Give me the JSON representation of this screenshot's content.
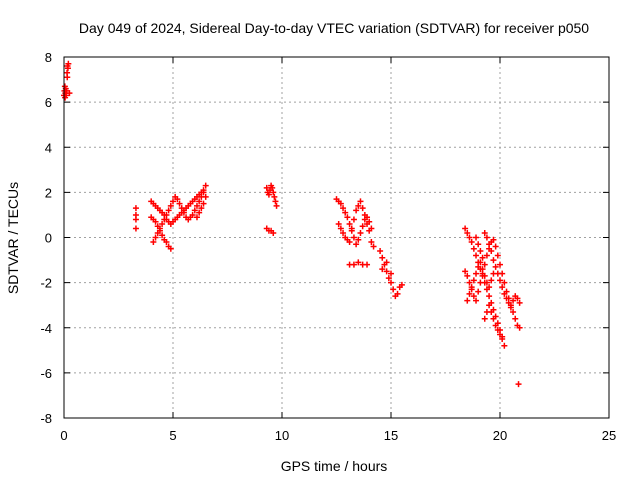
{
  "chart_data": {
    "type": "scatter",
    "title": "Day 049 of 2024, Sidereal Day-to-day VTEC variation (SDTVAR) for receiver p050",
    "xlabel": "GPS time / hours",
    "ylabel": "SDTVAR / TECUs",
    "xlim": [
      0,
      25
    ],
    "ylim": [
      -8,
      8
    ],
    "x_ticks": [
      0,
      5,
      10,
      15,
      20,
      25
    ],
    "y_ticks": [
      -8,
      -6,
      -4,
      -2,
      0,
      2,
      4,
      6,
      8
    ],
    "grid": true,
    "marker": "+",
    "series": [
      {
        "name": "SDTVAR",
        "color": "#ff0000",
        "points": [
          [
            0.0,
            6.3
          ],
          [
            0.02,
            6.5
          ],
          [
            0.04,
            6.7
          ],
          [
            0.06,
            6.4
          ],
          [
            0.08,
            6.6
          ],
          [
            0.1,
            6.3
          ],
          [
            0.12,
            6.5
          ],
          [
            0.14,
            7.3
          ],
          [
            0.16,
            7.6
          ],
          [
            0.18,
            7.5
          ],
          [
            0.2,
            7.7
          ],
          [
            0.15,
            7.1
          ],
          [
            0.05,
            6.2
          ],
          [
            0.25,
            6.4
          ],
          [
            3.3,
            1.3
          ],
          [
            3.3,
            1.0
          ],
          [
            3.3,
            0.8
          ],
          [
            3.3,
            0.4
          ],
          [
            4.0,
            1.6
          ],
          [
            4.1,
            1.5
          ],
          [
            4.2,
            1.4
          ],
          [
            4.3,
            1.3
          ],
          [
            4.4,
            1.2
          ],
          [
            4.5,
            1.1
          ],
          [
            4.6,
            1.0
          ],
          [
            4.7,
            0.8
          ],
          [
            4.8,
            0.7
          ],
          [
            4.9,
            0.6
          ],
          [
            5.0,
            0.7
          ],
          [
            5.1,
            0.8
          ],
          [
            5.2,
            0.9
          ],
          [
            5.3,
            1.0
          ],
          [
            5.4,
            1.1
          ],
          [
            5.5,
            1.2
          ],
          [
            5.6,
            1.3
          ],
          [
            5.7,
            1.4
          ],
          [
            5.8,
            1.5
          ],
          [
            5.9,
            1.6
          ],
          [
            6.0,
            1.7
          ],
          [
            6.1,
            1.8
          ],
          [
            6.2,
            1.9
          ],
          [
            6.3,
            2.0
          ],
          [
            6.4,
            2.1
          ],
          [
            6.5,
            2.3
          ],
          [
            4.0,
            0.9
          ],
          [
            4.1,
            0.8
          ],
          [
            4.2,
            0.7
          ],
          [
            4.3,
            0.5
          ],
          [
            4.4,
            0.3
          ],
          [
            4.5,
            0.1
          ],
          [
            4.6,
            -0.1
          ],
          [
            4.7,
            -0.2
          ],
          [
            4.8,
            -0.4
          ],
          [
            4.9,
            -0.5
          ],
          [
            4.1,
            -0.2
          ],
          [
            4.2,
            0.0
          ],
          [
            4.3,
            0.2
          ],
          [
            4.4,
            0.4
          ],
          [
            4.5,
            0.6
          ],
          [
            4.6,
            0.8
          ],
          [
            4.7,
            1.0
          ],
          [
            4.8,
            1.2
          ],
          [
            4.9,
            1.4
          ],
          [
            5.0,
            1.6
          ],
          [
            5.1,
            1.8
          ],
          [
            5.2,
            1.7
          ],
          [
            5.3,
            1.5
          ],
          [
            5.4,
            1.3
          ],
          [
            5.5,
            1.1
          ],
          [
            5.6,
            0.9
          ],
          [
            5.7,
            0.8
          ],
          [
            5.8,
            0.9
          ],
          [
            5.9,
            1.0
          ],
          [
            6.0,
            1.2
          ],
          [
            6.1,
            1.4
          ],
          [
            6.2,
            1.6
          ],
          [
            6.3,
            1.8
          ],
          [
            6.4,
            2.0
          ],
          [
            6.5,
            1.8
          ],
          [
            6.4,
            1.5
          ],
          [
            6.3,
            1.3
          ],
          [
            6.2,
            1.1
          ],
          [
            6.1,
            0.9
          ],
          [
            9.3,
            2.2
          ],
          [
            9.35,
            2.0
          ],
          [
            9.4,
            1.9
          ],
          [
            9.45,
            2.1
          ],
          [
            9.5,
            2.3
          ],
          [
            9.55,
            2.2
          ],
          [
            9.6,
            2.0
          ],
          [
            9.65,
            1.8
          ],
          [
            9.7,
            1.6
          ],
          [
            9.75,
            1.4
          ],
          [
            9.3,
            0.4
          ],
          [
            9.4,
            0.3
          ],
          [
            9.5,
            0.3
          ],
          [
            9.6,
            0.2
          ],
          [
            12.5,
            1.7
          ],
          [
            12.6,
            1.6
          ],
          [
            12.7,
            1.5
          ],
          [
            12.8,
            1.3
          ],
          [
            12.9,
            1.1
          ],
          [
            13.0,
            0.9
          ],
          [
            13.1,
            0.6
          ],
          [
            13.2,
            0.3
          ],
          [
            13.3,
            0.0
          ],
          [
            13.4,
            -0.3
          ],
          [
            13.5,
            -0.1
          ],
          [
            13.6,
            0.2
          ],
          [
            13.7,
            0.5
          ],
          [
            13.8,
            0.8
          ],
          [
            13.9,
            0.9
          ],
          [
            14.0,
            0.7
          ],
          [
            14.1,
            0.4
          ],
          [
            12.6,
            0.6
          ],
          [
            12.7,
            0.4
          ],
          [
            12.8,
            0.2
          ],
          [
            12.9,
            0.0
          ],
          [
            13.0,
            -0.1
          ],
          [
            13.1,
            -0.2
          ],
          [
            13.2,
            0.4
          ],
          [
            13.3,
            0.8
          ],
          [
            13.4,
            1.2
          ],
          [
            13.5,
            1.4
          ],
          [
            13.6,
            1.6
          ],
          [
            13.7,
            1.3
          ],
          [
            13.8,
            1.0
          ],
          [
            13.9,
            0.6
          ],
          [
            14.0,
            0.3
          ],
          [
            14.1,
            -0.2
          ],
          [
            14.2,
            -0.4
          ],
          [
            13.1,
            -1.2
          ],
          [
            13.3,
            -1.2
          ],
          [
            13.5,
            -1.1
          ],
          [
            13.7,
            -1.2
          ],
          [
            13.9,
            -1.2
          ],
          [
            14.5,
            -0.6
          ],
          [
            14.6,
            -0.9
          ],
          [
            14.7,
            -1.2
          ],
          [
            14.8,
            -1.5
          ],
          [
            14.9,
            -1.8
          ],
          [
            15.0,
            -2.0
          ],
          [
            15.1,
            -2.3
          ],
          [
            15.2,
            -2.6
          ],
          [
            15.3,
            -2.5
          ],
          [
            15.4,
            -2.2
          ],
          [
            15.5,
            -2.1
          ],
          [
            14.6,
            -1.4
          ],
          [
            14.8,
            -1.1
          ],
          [
            15.0,
            -1.6
          ],
          [
            18.4,
            0.4
          ],
          [
            18.5,
            0.2
          ],
          [
            18.6,
            0.0
          ],
          [
            18.7,
            -0.2
          ],
          [
            18.8,
            -0.5
          ],
          [
            18.9,
            -0.8
          ],
          [
            19.0,
            -1.1
          ],
          [
            19.1,
            -1.4
          ],
          [
            19.2,
            -1.7
          ],
          [
            19.3,
            -2.0
          ],
          [
            19.4,
            -2.3
          ],
          [
            19.5,
            -2.6
          ],
          [
            19.6,
            -2.9
          ],
          [
            19.7,
            -3.2
          ],
          [
            19.8,
            -3.5
          ],
          [
            19.9,
            -3.8
          ],
          [
            20.0,
            -4.1
          ],
          [
            20.1,
            -4.4
          ],
          [
            20.2,
            -4.8
          ],
          [
            18.4,
            -1.5
          ],
          [
            18.5,
            -1.7
          ],
          [
            18.6,
            -2.0
          ],
          [
            18.7,
            -2.3
          ],
          [
            18.8,
            -2.6
          ],
          [
            18.9,
            -2.8
          ],
          [
            19.0,
            -2.4
          ],
          [
            19.1,
            -2.0
          ],
          [
            19.2,
            -1.6
          ],
          [
            19.3,
            -1.2
          ],
          [
            19.4,
            -0.8
          ],
          [
            19.5,
            -0.5
          ],
          [
            19.6,
            -0.2
          ],
          [
            19.7,
            -0.1
          ],
          [
            19.8,
            -0.4
          ],
          [
            19.9,
            -0.8
          ],
          [
            20.0,
            -1.2
          ],
          [
            20.1,
            -1.6
          ],
          [
            20.2,
            -2.0
          ],
          [
            20.3,
            -2.4
          ],
          [
            20.4,
            -2.7
          ],
          [
            20.5,
            -3.0
          ],
          [
            20.6,
            -3.3
          ],
          [
            20.7,
            -3.6
          ],
          [
            20.8,
            -3.9
          ],
          [
            20.9,
            -4.0
          ],
          [
            18.5,
            -2.8
          ],
          [
            18.6,
            -2.5
          ],
          [
            18.7,
            -2.2
          ],
          [
            18.8,
            -1.9
          ],
          [
            18.9,
            -1.6
          ],
          [
            19.0,
            -1.3
          ],
          [
            19.1,
            -1.1
          ],
          [
            19.2,
            -1.4
          ],
          [
            19.3,
            -1.7
          ],
          [
            19.4,
            -2.0
          ],
          [
            19.5,
            -2.2
          ],
          [
            19.6,
            -1.9
          ],
          [
            19.7,
            -1.6
          ],
          [
            19.8,
            -1.3
          ],
          [
            19.9,
            -1.6
          ],
          [
            20.0,
            -1.9
          ],
          [
            20.1,
            -2.2
          ],
          [
            20.2,
            -2.5
          ],
          [
            20.3,
            -2.7
          ],
          [
            20.4,
            -2.9
          ],
          [
            20.5,
            -3.1
          ],
          [
            20.6,
            -2.8
          ],
          [
            20.7,
            -2.6
          ],
          [
            20.8,
            -2.7
          ],
          [
            20.9,
            -2.9
          ],
          [
            18.9,
            0.0
          ],
          [
            19.0,
            -0.3
          ],
          [
            19.1,
            -0.6
          ],
          [
            19.2,
            -0.9
          ],
          [
            19.3,
            0.2
          ],
          [
            19.4,
            0.0
          ],
          [
            19.5,
            -0.3
          ],
          [
            19.6,
            -0.6
          ],
          [
            19.7,
            -1.0
          ],
          [
            19.3,
            -3.6
          ],
          [
            19.4,
            -3.3
          ],
          [
            19.5,
            -3.0
          ],
          [
            19.6,
            -3.3
          ],
          [
            19.7,
            -3.6
          ],
          [
            19.8,
            -3.9
          ],
          [
            19.9,
            -4.1
          ],
          [
            20.0,
            -4.3
          ],
          [
            20.1,
            -4.5
          ],
          [
            20.85,
            -6.5
          ]
        ]
      }
    ]
  }
}
